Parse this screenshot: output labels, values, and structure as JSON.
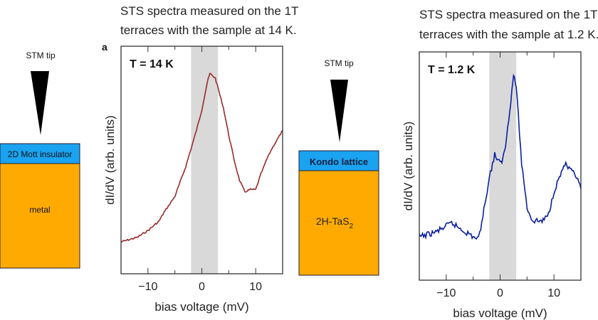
{
  "left_diagram": {
    "tip_label": "STM tip",
    "top_layer": "2D Mott insulator",
    "bottom_layer": "metal"
  },
  "middle_diagram": {
    "tip_label": "STM tip",
    "top_layer": "Kondo lattice",
    "bottom_layer": "2H-TaS",
    "bottom_layer_subscript": "2"
  },
  "colors": {
    "layer_top": "#1aa3f0",
    "layer_bottom": "#ffaa00",
    "band": "#d9d9d9",
    "series_14K": "#9a2a2a",
    "series_1_2K": "#0a1fa0"
  },
  "chart_data": [
    {
      "type": "line",
      "caption_line1": "STS spectra measured on the 1T",
      "caption_line2": "terraces with the sample at 14 K.",
      "panel_label": "a",
      "annotation": "T = 14 K",
      "xlabel": "bias voltage (mV)",
      "ylabel": "dI/dV (arb. units)",
      "xlim": [
        -15,
        15
      ],
      "ylim": [
        0,
        1
      ],
      "xticks": [
        "−10",
        "0",
        "10"
      ],
      "shaded_band": [
        -2,
        3
      ],
      "x": [
        -15,
        -12,
        -10,
        -8,
        -7,
        -5,
        -3,
        -1,
        0,
        1,
        1.5,
        2.5,
        4,
        5,
        6,
        7,
        8,
        9,
        10,
        11,
        12,
        13,
        14,
        15
      ],
      "y": [
        0.14,
        0.16,
        0.19,
        0.23,
        0.27,
        0.34,
        0.47,
        0.63,
        0.72,
        0.84,
        0.88,
        0.86,
        0.73,
        0.61,
        0.5,
        0.41,
        0.36,
        0.37,
        0.37,
        0.44,
        0.5,
        0.55,
        0.59,
        0.63
      ]
    },
    {
      "type": "line",
      "caption_line1": "STS spectra measured on the 1T",
      "caption_line2": "terraces with the sample at 1.2 K.",
      "annotation": "T = 1.2 K",
      "xlabel": "bias voltage (mV)",
      "ylabel": "dI/dV (arb. units)",
      "xlim": [
        -15,
        15
      ],
      "ylim": [
        0,
        1
      ],
      "xticks": [
        "−10",
        "0",
        "10"
      ],
      "shaded_band": [
        -2,
        3
      ],
      "x": [
        -15,
        -12,
        -9,
        -7,
        -5,
        -4,
        -3,
        -2,
        -1,
        0,
        0.5,
        1,
        2,
        2.5,
        3,
        4,
        5,
        6,
        8,
        9,
        10,
        11,
        12,
        13,
        14,
        15
      ],
      "y": [
        0.19,
        0.21,
        0.25,
        0.22,
        0.19,
        0.18,
        0.31,
        0.45,
        0.55,
        0.51,
        0.53,
        0.59,
        0.79,
        0.9,
        0.85,
        0.51,
        0.32,
        0.26,
        0.26,
        0.29,
        0.39,
        0.45,
        0.51,
        0.48,
        0.46,
        0.4
      ]
    }
  ]
}
